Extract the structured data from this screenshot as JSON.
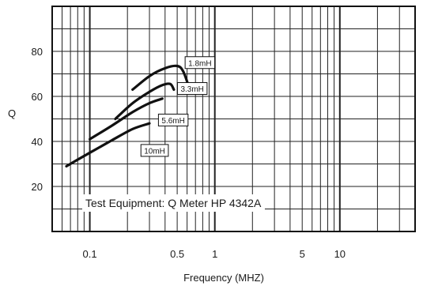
{
  "chart_data": {
    "type": "line",
    "xlabel": "Frequency (MHZ)",
    "ylabel": "Q",
    "x_scale": "log",
    "xlim": [
      0.05,
      40
    ],
    "ylim": [
      0,
      100
    ],
    "x_ticks": [
      {
        "value": 0.1,
        "label": "0.1"
      },
      {
        "value": 0.5,
        "label": "0.5"
      },
      {
        "value": 1,
        "label": "1"
      },
      {
        "value": 5,
        "label": "5"
      },
      {
        "value": 10,
        "label": "10"
      }
    ],
    "y_ticks": [
      {
        "value": 20,
        "label": "20"
      },
      {
        "value": 40,
        "label": "40"
      },
      {
        "value": 60,
        "label": "60"
      },
      {
        "value": 80,
        "label": "80"
      }
    ],
    "grid": true,
    "annotation": "Test Equipment: Q Meter HP 4342A",
    "series": [
      {
        "name": "1.8mH",
        "points": [
          [
            0.22,
            63
          ],
          [
            0.3,
            69
          ],
          [
            0.4,
            72.5
          ],
          [
            0.5,
            73.5
          ],
          [
            0.56,
            71
          ],
          [
            0.63,
            63
          ]
        ]
      },
      {
        "name": "3.3mH",
        "points": [
          [
            0.16,
            50
          ],
          [
            0.22,
            57
          ],
          [
            0.3,
            62
          ],
          [
            0.38,
            65
          ],
          [
            0.44,
            65.5
          ],
          [
            0.47,
            63
          ]
        ]
      },
      {
        "name": "5.6mH",
        "points": [
          [
            0.1,
            41
          ],
          [
            0.15,
            47
          ],
          [
            0.22,
            53
          ],
          [
            0.3,
            57
          ],
          [
            0.38,
            59
          ]
        ]
      },
      {
        "name": "10mH",
        "points": [
          [
            0.065,
            29
          ],
          [
            0.1,
            35
          ],
          [
            0.15,
            40.5
          ],
          [
            0.22,
            45.5
          ],
          [
            0.3,
            48
          ]
        ]
      }
    ],
    "curve_labels": [
      {
        "text": "1.8mH",
        "x": 0.76,
        "y": 75
      },
      {
        "text": "3.3mH",
        "x": 0.66,
        "y": 63.5
      },
      {
        "text": "5.6mH",
        "x": 0.465,
        "y": 49.5
      },
      {
        "text": "10mH",
        "x": 0.33,
        "y": 36
      }
    ]
  }
}
